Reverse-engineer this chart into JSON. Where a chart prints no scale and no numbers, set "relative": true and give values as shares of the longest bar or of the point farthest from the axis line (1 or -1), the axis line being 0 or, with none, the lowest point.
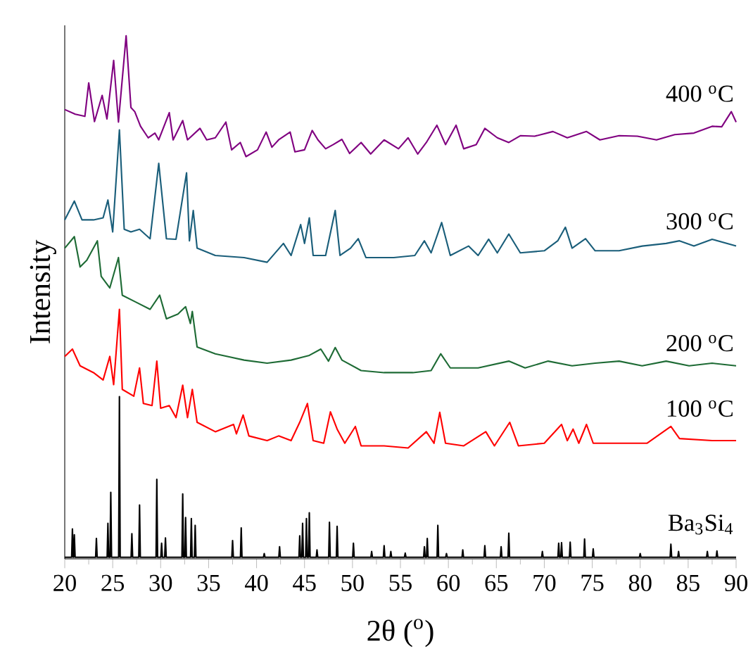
{
  "chart_data": {
    "type": "line",
    "relative": true,
    "xlabel": "2θ ($^{o}$)",
    "ylabel": "Intensity",
    "xlim": [
      20,
      90
    ],
    "xticks": [
      20,
      {
        "value": 22.5,
        "label": null
      },
      25,
      {
        "value": 27.5,
        "label": null
      },
      30,
      {
        "value": 32.5,
        "label": null
      },
      35,
      {
        "value": 37.5,
        "label": null
      },
      40,
      {
        "value": 42.5,
        "label": null
      },
      45,
      {
        "value": 47.5,
        "label": null
      },
      50,
      {
        "value": 52.5,
        "label": null
      },
      55,
      {
        "value": 57.5,
        "label": null
      },
      60,
      {
        "value": 62.5,
        "label": null
      },
      65,
      {
        "value": 67.5,
        "label": null
      },
      70,
      {
        "value": 72.5,
        "label": null
      },
      75,
      {
        "value": 77.5,
        "label": null
      },
      80,
      {
        "value": 82.5,
        "label": null
      },
      85,
      {
        "value": 87.5,
        "label": null
      },
      90
    ],
    "series": [
      {
        "name": "Ba$_{3}$Si$_{4}$",
        "color": "#000000",
        "x": [
          20,
          20.72,
          20.8,
          20.88,
          20.92,
          21.0,
          21.08,
          23.22,
          23.3,
          23.38,
          24.42,
          24.5,
          24.58,
          24.72,
          24.8,
          24.88,
          25.62,
          25.7,
          25.78,
          26.92,
          27.0,
          27.08,
          27.72,
          27.8,
          27.88,
          29.52,
          29.6,
          29.68,
          30.02,
          30.1,
          30.18,
          30.42,
          30.5,
          30.58,
          32.22,
          32.3,
          32.38,
          32.52,
          32.6,
          32.68,
          33.12,
          33.2,
          33.28,
          33.52,
          33.6,
          33.68,
          37.42,
          37.5,
          37.58,
          38.32,
          38.4,
          38.48,
          40.72,
          40.8,
          40.88,
          42.32,
          42.4,
          42.48,
          44.42,
          44.5,
          44.58,
          44.72,
          44.8,
          44.88,
          45.12,
          45.2,
          45.28,
          45.42,
          45.5,
          45.58,
          46.22,
          46.3,
          46.38,
          47.52,
          47.6,
          47.68,
          48.32,
          48.4,
          48.48,
          50.02,
          50.1,
          50.18,
          51.92,
          52.0,
          52.08,
          53.22,
          53.3,
          53.38,
          53.92,
          54.0,
          54.08,
          55.42,
          55.5,
          55.58,
          57.42,
          57.5,
          57.58,
          57.72,
          57.8,
          57.88,
          58.82,
          58.9,
          58.98,
          59.72,
          59.8,
          59.88,
          61.42,
          61.5,
          61.58,
          63.72,
          63.8,
          63.88,
          65.42,
          65.5,
          65.58,
          66.22,
          66.3,
          66.38,
          69.72,
          69.8,
          69.88,
          71.42,
          71.5,
          71.58,
          71.72,
          71.8,
          71.88,
          72.62,
          72.7,
          72.78,
          74.12,
          74.2,
          74.28,
          75.02,
          75.1,
          75.18,
          79.92,
          80.0,
          80.08,
          83.12,
          83.2,
          83.28,
          83.92,
          84.0,
          84.08,
          86.92,
          87.0,
          87.08,
          87.92,
          88.0,
          88.08,
          90
        ],
        "values": [
          0.003,
          0.003,
          0.057,
          0.003,
          0.003,
          0.046,
          0.003,
          0.003,
          0.039,
          0.003,
          0.003,
          0.068,
          0.003,
          0.003,
          0.127,
          0.003,
          0.003,
          0.31,
          0.003,
          0.003,
          0.048,
          0.003,
          0.003,
          0.103,
          0.003,
          0.003,
          0.152,
          0.003,
          0.003,
          0.03,
          0.003,
          0.003,
          0.04,
          0.003,
          0.003,
          0.124,
          0.003,
          0.003,
          0.079,
          0.003,
          0.003,
          0.077,
          0.003,
          0.003,
          0.064,
          0.003,
          0.003,
          0.035,
          0.003,
          0.003,
          0.059,
          0.003,
          0.003,
          0.01,
          0.003,
          0.003,
          0.023,
          0.003,
          0.003,
          0.044,
          0.003,
          0.003,
          0.068,
          0.003,
          0.003,
          0.077,
          0.003,
          0.003,
          0.088,
          0.003,
          0.003,
          0.017,
          0.003,
          0.003,
          0.07,
          0.003,
          0.003,
          0.062,
          0.003,
          0.003,
          0.03,
          0.003,
          0.003,
          0.014,
          0.003,
          0.003,
          0.025,
          0.003,
          0.003,
          0.014,
          0.003,
          0.003,
          0.011,
          0.003,
          0.003,
          0.023,
          0.003,
          0.003,
          0.039,
          0.003,
          0.003,
          0.064,
          0.003,
          0.003,
          0.01,
          0.003,
          0.003,
          0.017,
          0.003,
          0.003,
          0.025,
          0.003,
          0.003,
          0.023,
          0.003,
          0.003,
          0.049,
          0.003,
          0.003,
          0.014,
          0.003,
          0.003,
          0.03,
          0.003,
          0.003,
          0.031,
          0.003,
          0.003,
          0.032,
          0.003,
          0.003,
          0.038,
          0.003,
          0.003,
          0.019,
          0.003,
          0.003,
          0.01,
          0.003,
          0.003,
          0.028,
          0.003,
          0.003,
          0.014,
          0.003,
          0.003,
          0.014,
          0.003,
          0.003,
          0.015,
          0.003,
          0.003
        ]
      },
      {
        "name": "100 $^{o}$C",
        "color": "#ff0000",
        "x": [
          20.0,
          20.8,
          21.6,
          23.0,
          24.0,
          24.7,
          25.1,
          25.7,
          26.0,
          27.2,
          27.8,
          28.2,
          29.1,
          29.6,
          30.0,
          30.9,
          31.6,
          32.3,
          32.8,
          33.3,
          33.8,
          35.7,
          37.6,
          37.9,
          38.6,
          39.2,
          41.1,
          42.3,
          43.6,
          44.5,
          45.3,
          45.9,
          47.0,
          47.7,
          48.4,
          49.2,
          50.3,
          50.9,
          53.3,
          55.8,
          57.7,
          58.5,
          59.1,
          59.7,
          61.6,
          63.9,
          64.8,
          66.4,
          67.3,
          70.0,
          71.8,
          72.4,
          73.0,
          73.6,
          74.4,
          75.1,
          77.8,
          80.7,
          83.2,
          84.1,
          87.5,
          90.0
        ],
        "values": [
          0.387,
          0.401,
          0.369,
          0.356,
          0.342,
          0.387,
          0.333,
          0.477,
          0.324,
          0.311,
          0.365,
          0.297,
          0.293,
          0.378,
          0.288,
          0.293,
          0.27,
          0.332,
          0.27,
          0.324,
          0.261,
          0.243,
          0.257,
          0.239,
          0.275,
          0.235,
          0.226,
          0.235,
          0.226,
          0.261,
          0.297,
          0.226,
          0.221,
          0.281,
          0.248,
          0.221,
          0.253,
          0.216,
          0.216,
          0.212,
          0.243,
          0.221,
          0.28,
          0.221,
          0.216,
          0.243,
          0.216,
          0.261,
          0.216,
          0.221,
          0.257,
          0.226,
          0.248,
          0.221,
          0.257,
          0.221,
          0.221,
          0.221,
          0.253,
          0.23,
          0.226,
          0.226
        ]
      },
      {
        "name": "200 $^{o}$C",
        "color": "#1e6b35",
        "x": [
          20.0,
          21.0,
          21.6,
          22.3,
          23.4,
          23.8,
          24.7,
          25.6,
          26.0,
          27.4,
          28.9,
          29.9,
          30.6,
          31.8,
          32.6,
          33.1,
          33.3,
          33.8,
          35.7,
          38.7,
          41.1,
          43.6,
          45.5,
          46.7,
          47.5,
          48.2,
          48.9,
          50.9,
          53.3,
          56.3,
          58.2,
          59.2,
          60.2,
          63.1,
          66.3,
          68.0,
          70.4,
          72.9,
          75.3,
          77.8,
          80.2,
          82.7,
          85.1,
          87.5,
          90.0
        ],
        "values": [
          0.594,
          0.616,
          0.558,
          0.571,
          0.608,
          0.54,
          0.518,
          0.576,
          0.504,
          0.491,
          0.477,
          0.504,
          0.459,
          0.468,
          0.482,
          0.45,
          0.473,
          0.405,
          0.392,
          0.38,
          0.374,
          0.38,
          0.389,
          0.401,
          0.378,
          0.404,
          0.38,
          0.36,
          0.356,
          0.356,
          0.36,
          0.392,
          0.365,
          0.365,
          0.378,
          0.365,
          0.378,
          0.369,
          0.374,
          0.378,
          0.369,
          0.378,
          0.369,
          0.374,
          0.369
        ]
      },
      {
        "name": "300 $^{o}$C",
        "color": "#1a5e7a",
        "x": [
          20.0,
          21.0,
          21.8,
          23.0,
          24.0,
          24.5,
          25.0,
          25.7,
          26.2,
          26.9,
          27.8,
          28.9,
          29.8,
          30.6,
          31.6,
          32.7,
          33.0,
          33.4,
          33.8,
          35.7,
          38.7,
          41.1,
          42.8,
          43.6,
          44.6,
          45.0,
          45.5,
          45.9,
          47.2,
          48.2,
          48.7,
          49.8,
          50.6,
          51.4,
          54.3,
          56.5,
          57.5,
          58.2,
          59.3,
          60.2,
          62.1,
          63.1,
          64.2,
          65.1,
          66.3,
          67.5,
          70.0,
          71.4,
          72.2,
          72.9,
          74.3,
          75.3,
          77.8,
          80.2,
          82.7,
          84.1,
          85.6,
          87.5,
          90.0
        ],
        "values": [
          0.648,
          0.684,
          0.648,
          0.648,
          0.652,
          0.686,
          0.625,
          0.82,
          0.63,
          0.625,
          0.63,
          0.612,
          0.756,
          0.612,
          0.611,
          0.738,
          0.608,
          0.666,
          0.594,
          0.58,
          0.576,
          0.567,
          0.603,
          0.58,
          0.639,
          0.603,
          0.652,
          0.58,
          0.58,
          0.666,
          0.58,
          0.594,
          0.612,
          0.576,
          0.576,
          0.58,
          0.608,
          0.585,
          0.643,
          0.58,
          0.598,
          0.58,
          0.611,
          0.585,
          0.621,
          0.585,
          0.589,
          0.608,
          0.634,
          0.594,
          0.612,
          0.589,
          0.589,
          0.598,
          0.603,
          0.608,
          0.598,
          0.611,
          0.598
        ]
      },
      {
        "name": "400 $^{o}$C",
        "color": "#800080",
        "x": [
          20.0,
          21.1,
          22.1,
          22.5,
          23.1,
          23.9,
          24.4,
          25.1,
          25.6,
          26.4,
          26.9,
          27.3,
          27.9,
          28.7,
          29.4,
          29.8,
          30.9,
          31.3,
          32.3,
          32.8,
          34.1,
          34.8,
          35.7,
          36.8,
          37.4,
          38.3,
          38.9,
          40.1,
          41.0,
          41.6,
          42.3,
          43.5,
          44.0,
          45.0,
          45.8,
          46.4,
          47.2,
          48.0,
          48.9,
          49.7,
          50.9,
          51.9,
          53.3,
          54.8,
          55.8,
          56.8,
          57.7,
          58.8,
          59.7,
          60.8,
          61.6,
          62.9,
          63.8,
          65.1,
          66.3,
          67.5,
          69.0,
          70.9,
          72.4,
          74.4,
          75.8,
          77.8,
          79.7,
          81.7,
          83.6,
          85.6,
          87.5,
          88.5,
          89.5,
          90.0
        ],
        "values": [
          0.859,
          0.85,
          0.846,
          0.91,
          0.836,
          0.886,
          0.841,
          0.953,
          0.835,
          1.0,
          0.863,
          0.855,
          0.827,
          0.805,
          0.814,
          0.801,
          0.853,
          0.801,
          0.838,
          0.801,
          0.823,
          0.801,
          0.805,
          0.835,
          0.782,
          0.796,
          0.769,
          0.782,
          0.816,
          0.787,
          0.801,
          0.816,
          0.778,
          0.782,
          0.819,
          0.801,
          0.784,
          0.792,
          0.802,
          0.775,
          0.796,
          0.774,
          0.801,
          0.784,
          0.805,
          0.774,
          0.796,
          0.829,
          0.792,
          0.829,
          0.784,
          0.792,
          0.823,
          0.805,
          0.796,
          0.809,
          0.808,
          0.817,
          0.805,
          0.817,
          0.801,
          0.809,
          0.808,
          0.801,
          0.811,
          0.814,
          0.827,
          0.826,
          0.855,
          0.835
        ]
      }
    ]
  }
}
